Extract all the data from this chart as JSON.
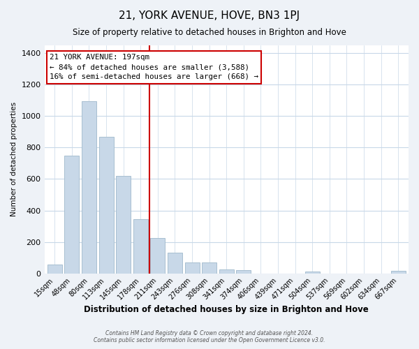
{
  "title": "21, YORK AVENUE, HOVE, BN3 1PJ",
  "subtitle": "Size of property relative to detached houses in Brighton and Hove",
  "xlabel": "Distribution of detached houses by size in Brighton and Hove",
  "ylabel": "Number of detached properties",
  "bar_labels": [
    "15sqm",
    "48sqm",
    "80sqm",
    "113sqm",
    "145sqm",
    "178sqm",
    "211sqm",
    "243sqm",
    "276sqm",
    "308sqm",
    "341sqm",
    "374sqm",
    "406sqm",
    "439sqm",
    "471sqm",
    "504sqm",
    "537sqm",
    "569sqm",
    "602sqm",
    "634sqm",
    "667sqm"
  ],
  "bar_values": [
    55,
    750,
    1095,
    870,
    620,
    345,
    225,
    130,
    68,
    70,
    25,
    20,
    0,
    0,
    0,
    10,
    0,
    0,
    0,
    0,
    15
  ],
  "bar_color": "#c8d8e8",
  "bar_edge_color": "#a8bfd0",
  "ylim": [
    0,
    1450
  ],
  "yticks": [
    0,
    200,
    400,
    600,
    800,
    1000,
    1200,
    1400
  ],
  "vline_x_index": 5.5,
  "annotation_title": "21 YORK AVENUE: 197sqm",
  "annotation_line1": "← 84% of detached houses are smaller (3,588)",
  "annotation_line2": "16% of semi-detached houses are larger (668) →",
  "annotation_box_color": "#ffffff",
  "annotation_border_color": "#cc0000",
  "vline_color": "#cc0000",
  "footer1": "Contains HM Land Registry data © Crown copyright and database right 2024.",
  "footer2": "Contains public sector information licensed under the Open Government Licence v3.0.",
  "background_color": "#eef2f7",
  "plot_bg_color": "#ffffff",
  "grid_color": "#c8d8e8"
}
